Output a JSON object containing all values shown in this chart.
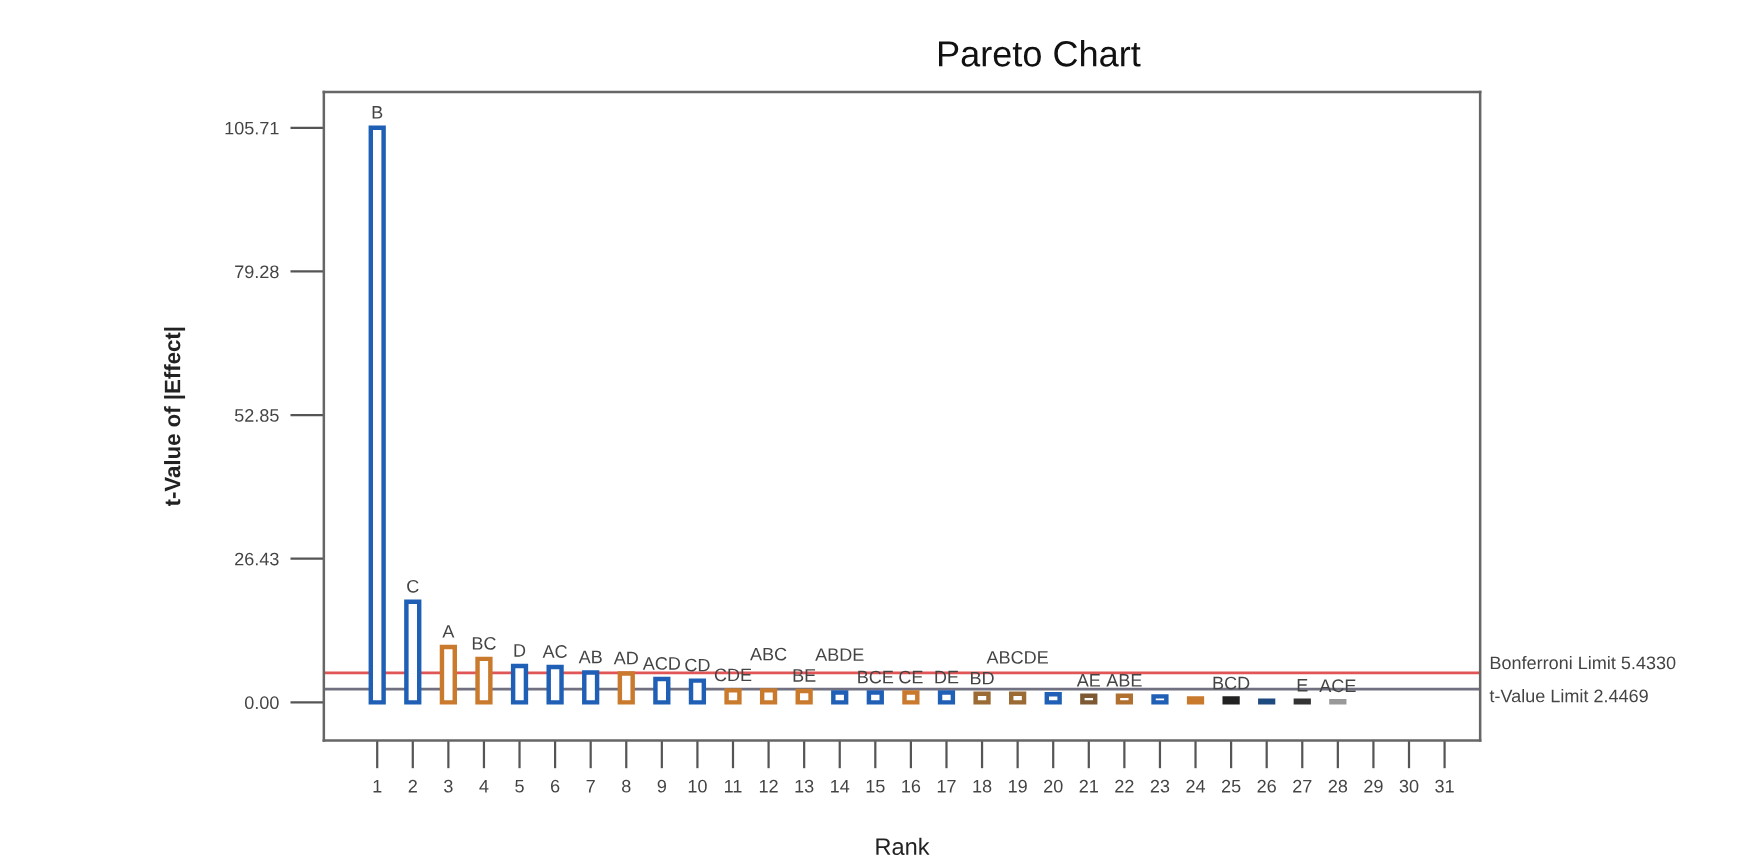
{
  "chart_data": {
    "type": "bar",
    "title": "Pareto Chart",
    "xlabel": "Rank",
    "ylabel": "t-Value of |Effect|",
    "categories": [
      "1",
      "2",
      "3",
      "4",
      "5",
      "6",
      "7",
      "8",
      "9",
      "10",
      "11",
      "12",
      "13",
      "14",
      "15",
      "16",
      "17",
      "18",
      "19",
      "20",
      "21",
      "22",
      "23",
      "24",
      "25",
      "26",
      "27",
      "28",
      "29",
      "30",
      "31"
    ],
    "values": [
      105.71,
      18.5,
      10.2,
      8.0,
      6.7,
      6.5,
      5.5,
      5.3,
      4.3,
      4.0,
      2.2,
      2.2,
      2.1,
      1.8,
      1.8,
      1.8,
      1.8,
      1.6,
      1.6,
      1.5,
      1.2,
      1.2,
      1.1,
      0.7,
      0.7,
      0.3,
      0.3,
      0.2,
      null,
      null,
      null
    ],
    "colors": [
      "#1f5fb5",
      "#1f5fb5",
      "#c97a2c",
      "#c97a2c",
      "#1f5fb5",
      "#1f5fb5",
      "#1f5fb5",
      "#c97a2c",
      "#1f5fb5",
      "#1f5fb5",
      "#c97a2c",
      "#c97a2c",
      "#c97a2c",
      "#1f5fb5",
      "#1f5fb5",
      "#c97a2c",
      "#1f5fb5",
      "#9a6b35",
      "#9a6b35",
      "#1f5fb5",
      "#7d5a33",
      "#b07030",
      "#1f5fb5",
      "#c97a2c",
      "#222222",
      "#1f4a80",
      "#333333",
      "#999999",
      "#999999",
      "#999999",
      "#999999"
    ],
    "value_labels": [
      "B",
      "C",
      "A",
      "BC",
      "D",
      "AC",
      "AB",
      "AD",
      "ACD",
      "CD",
      "CDE",
      "ABC",
      "BE",
      "ABDE",
      "BCE",
      "CE",
      "DE",
      "BD",
      "ABCDE",
      null,
      "AE",
      "ABE",
      null,
      null,
      "BCD",
      null,
      "E",
      "ACE",
      null,
      null,
      null
    ],
    "ylim": [
      -7,
      112.3
    ],
    "yticks": [
      {
        "value": 0,
        "label": "0.00"
      },
      26.43,
      52.85,
      79.28,
      105.71
    ],
    "ref_lines": [
      {
        "axis": "y",
        "value": 5.433,
        "label": "Bonferroni Limit 5.4330",
        "color": "#e05555"
      },
      {
        "axis": "y",
        "value": 2.4469,
        "label": "t-Value Limit 2.4469",
        "color": "#707080"
      }
    ]
  }
}
